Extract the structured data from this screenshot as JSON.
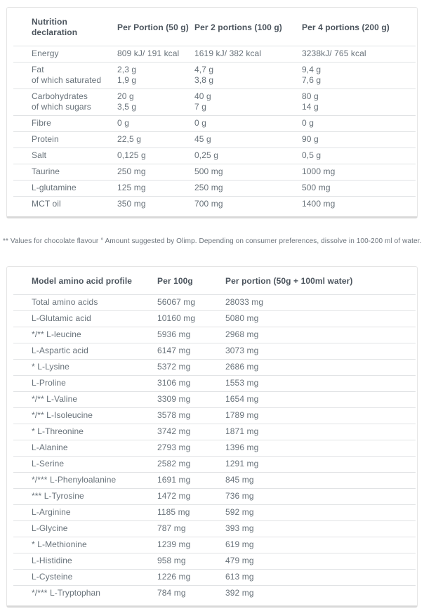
{
  "colors": {
    "background": "#ffffff",
    "header_text": "#4b545d",
    "body_text": "#68727a",
    "card_border": "#e5e5e5",
    "card_border_bottom": "#d9d9d9",
    "row_divider": "#e1e3e5"
  },
  "nutrition_table": {
    "headers": [
      "Nutrition declaration",
      "Per Portion (50 g)",
      "Per 2 portions (100 g)",
      "Per 4 portions (200 g)"
    ],
    "rows": [
      [
        [
          "Energy"
        ],
        [
          "809 kJ/ 191 kcal"
        ],
        [
          "1619 kJ/ 382 kcal"
        ],
        [
          "3238kJ/ 765 kcal"
        ]
      ],
      [
        [
          "Fat",
          "of which saturated"
        ],
        [
          "2,3 g",
          "1,9 g"
        ],
        [
          "4,7 g",
          "3,8 g"
        ],
        [
          "9,4 g",
          "7,6 g"
        ]
      ],
      [
        [
          "Carbohydrates",
          "of which sugars"
        ],
        [
          "20 g",
          "3,5 g"
        ],
        [
          "40 g",
          "7 g"
        ],
        [
          "80 g",
          "14 g"
        ]
      ],
      [
        [
          "Fibre"
        ],
        [
          "0 g"
        ],
        [
          "0 g"
        ],
        [
          "0 g"
        ]
      ],
      [
        [
          "Protein"
        ],
        [
          "22,5 g"
        ],
        [
          "45 g"
        ],
        [
          "90 g"
        ]
      ],
      [
        [
          "Salt"
        ],
        [
          "0,125 g"
        ],
        [
          "0,25 g"
        ],
        [
          "0,5 g"
        ]
      ],
      [
        [
          "Taurine"
        ],
        [
          "250 mg"
        ],
        [
          "500 mg"
        ],
        [
          "1000 mg"
        ]
      ],
      [
        [
          "L-glutamine"
        ],
        [
          "125 mg"
        ],
        [
          "250 mg"
        ],
        [
          "500 mg"
        ]
      ],
      [
        [
          "MCT oil"
        ],
        [
          "350 mg"
        ],
        [
          "700 mg"
        ],
        [
          "1400 mg"
        ]
      ]
    ]
  },
  "footnote": "** Values for chocolate flavour ° Amount suggested by Olimp. Depending on consumer preferences, dissolve in 100-200 ml of water.",
  "amino_table": {
    "headers": [
      "Model amino acid profile",
      "Per 100g",
      "Per portion (50g + 100ml water)"
    ],
    "rows": [
      [
        [
          "Total amino acids"
        ],
        [
          "56067 mg"
        ],
        [
          "28033 mg"
        ]
      ],
      [
        [
          "L-Glutamic acid"
        ],
        [
          "10160 mg"
        ],
        [
          "5080 mg"
        ]
      ],
      [
        [
          "*/** L-leucine"
        ],
        [
          "5936 mg"
        ],
        [
          "2968 mg"
        ]
      ],
      [
        [
          "L-Aspartic acid"
        ],
        [
          "6147 mg"
        ],
        [
          "3073 mg"
        ]
      ],
      [
        [
          "* L-Lysine"
        ],
        [
          "5372 mg"
        ],
        [
          "2686 mg"
        ]
      ],
      [
        [
          "L-Proline"
        ],
        [
          "3106 mg"
        ],
        [
          "1553 mg"
        ]
      ],
      [
        [
          "*/** L-Valine"
        ],
        [
          "3309 mg"
        ],
        [
          "1654 mg"
        ]
      ],
      [
        [
          "*/** L-Isoleucine"
        ],
        [
          "3578 mg"
        ],
        [
          "1789 mg"
        ]
      ],
      [
        [
          "* L-Threonine"
        ],
        [
          "3742 mg"
        ],
        [
          "1871 mg"
        ]
      ],
      [
        [
          "L-Alanine"
        ],
        [
          "2793 mg"
        ],
        [
          "1396 mg"
        ]
      ],
      [
        [
          "L-Serine"
        ],
        [
          "2582 mg"
        ],
        [
          "1291 mg"
        ]
      ],
      [
        [
          "*/*** L-Phenyloalanine"
        ],
        [
          "1691 mg"
        ],
        [
          "845 mg"
        ]
      ],
      [
        [
          "*** L-Tyrosine"
        ],
        [
          "1472 mg"
        ],
        [
          "736 mg"
        ]
      ],
      [
        [
          "L-Arginine"
        ],
        [
          "1185 mg"
        ],
        [
          "592 mg"
        ]
      ],
      [
        [
          "L-Glycine"
        ],
        [
          "787 mg"
        ],
        [
          "393 mg"
        ]
      ],
      [
        [
          "* L-Methionine"
        ],
        [
          "1239 mg"
        ],
        [
          "619 mg"
        ]
      ],
      [
        [
          "L-Histidine"
        ],
        [
          "958 mg"
        ],
        [
          "479 mg"
        ]
      ],
      [
        [
          "L-Cysteine"
        ],
        [
          "1226 mg"
        ],
        [
          "613 mg"
        ]
      ],
      [
        [
          "*/*** L-Tryptophan"
        ],
        [
          "784 mg"
        ],
        [
          "392 mg"
        ]
      ]
    ]
  }
}
